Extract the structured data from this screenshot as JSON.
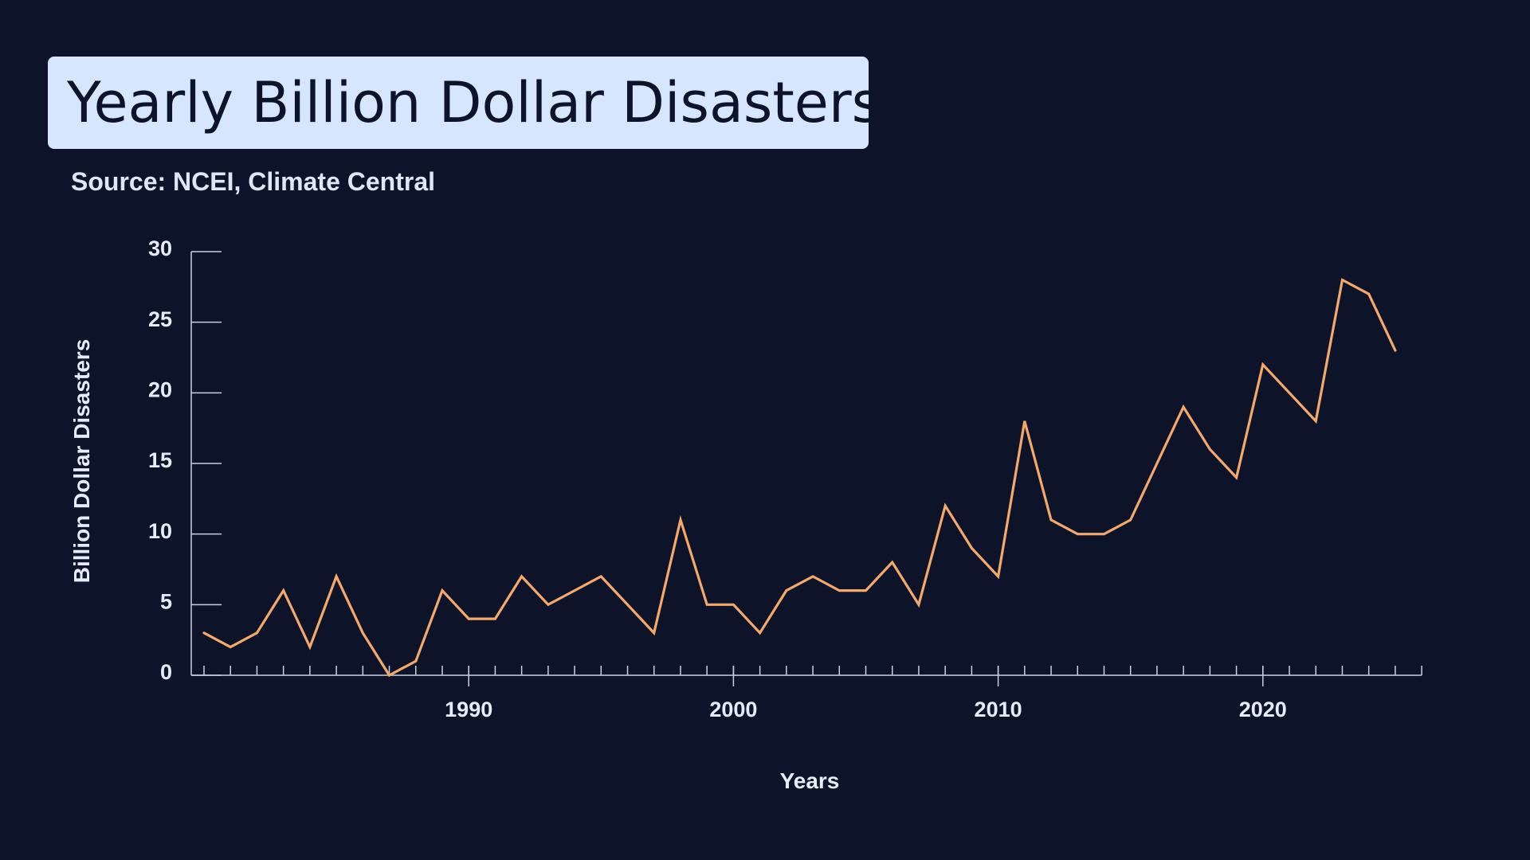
{
  "title": "Yearly Billion Dollar Disasters",
  "subtitle": "Source: NCEI, Climate Central",
  "colors": {
    "background": "#0d1429",
    "title_box": "#d6e6ff",
    "line": "#f5a86a",
    "axis": "#c8d0e0",
    "text": "#e6ecf8"
  },
  "chart_data": {
    "type": "line",
    "xlabel": "Years",
    "ylabel": "Billion Dollar Disasters",
    "xlim": [
      1979,
      2026
    ],
    "ylim": [
      0,
      30
    ],
    "xticks": [
      1990,
      2000,
      2010,
      2020
    ],
    "xtick_labels": [
      "1990",
      "2000",
      "2010",
      "2020"
    ],
    "yticks": [
      0,
      5,
      10,
      15,
      20,
      25,
      30
    ],
    "ytick_labels": [
      "0",
      "5",
      "10",
      "15",
      "20",
      "25",
      "30"
    ],
    "grid": false,
    "x": [
      1980,
      1981,
      1982,
      1983,
      1984,
      1985,
      1986,
      1987,
      1988,
      1989,
      1990,
      1991,
      1992,
      1993,
      1994,
      1995,
      1996,
      1997,
      1998,
      1999,
      2000,
      2001,
      2002,
      2003,
      2004,
      2005,
      2006,
      2007,
      2008,
      2009,
      2010,
      2011,
      2012,
      2013,
      2014,
      2015,
      2016,
      2017,
      2018,
      2019,
      2020,
      2021,
      2022,
      2023,
      2024,
      2025
    ],
    "series": [
      {
        "values": [
          3,
          2,
          3,
          6,
          2,
          7,
          3,
          0,
          1,
          6,
          4,
          4,
          7,
          5,
          6,
          7,
          5,
          3,
          11,
          5,
          5,
          3,
          6,
          7,
          6,
          6,
          8,
          5,
          12,
          9,
          7,
          18,
          11,
          10,
          10,
          11,
          15,
          19,
          16,
          14,
          22,
          20,
          18,
          28,
          27,
          23
        ]
      }
    ]
  }
}
